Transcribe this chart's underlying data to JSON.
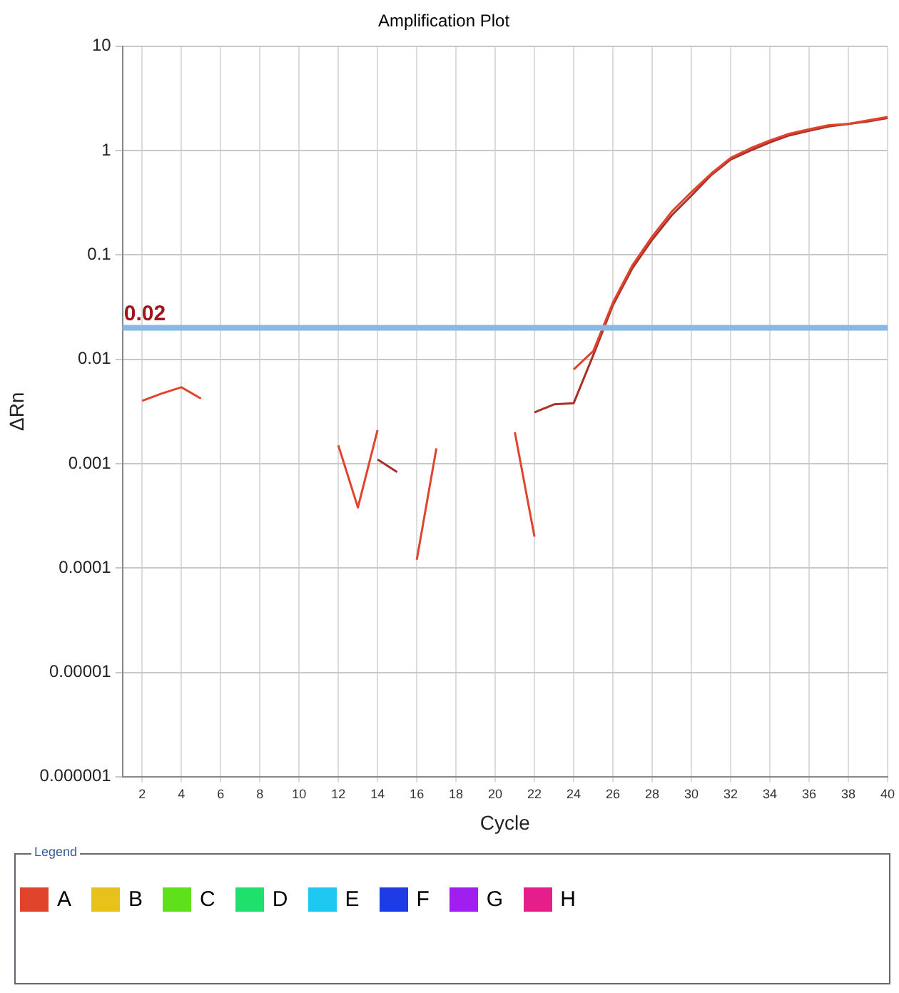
{
  "chart_data": {
    "type": "line",
    "title": "Amplification Plot",
    "xlabel": "Cycle",
    "ylabel": "ΔRn",
    "legend_title": "Legend",
    "x": [
      2,
      3,
      4,
      5,
      6,
      7,
      8,
      9,
      10,
      11,
      12,
      13,
      14,
      15,
      16,
      17,
      18,
      19,
      20,
      21,
      22,
      23,
      24,
      25,
      26,
      27,
      28,
      29,
      30,
      31,
      32,
      33,
      34,
      35,
      36,
      37,
      38,
      39,
      40
    ],
    "series": [
      {
        "name": "A",
        "color": "#e0442c",
        "values": [
          0.004,
          0.0047,
          0.0054,
          0.0042,
          null,
          null,
          null,
          null,
          null,
          null,
          0.0015,
          0.00038,
          0.0021,
          null,
          0.00012,
          0.0014,
          null,
          null,
          null,
          0.002,
          0.0002,
          null,
          0.008,
          0.012,
          0.035,
          0.08,
          0.15,
          0.26,
          0.4,
          0.6,
          0.85,
          1.05,
          1.25,
          1.45,
          1.6,
          1.75,
          1.8,
          1.95,
          2.1
        ]
      },
      {
        "color": "#a8322a",
        "values": [
          null,
          null,
          null,
          null,
          null,
          null,
          null,
          null,
          null,
          null,
          null,
          null,
          0.0011,
          0.00083,
          null,
          null,
          null,
          null,
          null,
          null,
          0.0031,
          0.0037,
          0.0038,
          0.011,
          0.033,
          0.075,
          0.14,
          0.24,
          0.37,
          0.58,
          0.82,
          1.0,
          1.2,
          1.4,
          1.55,
          1.7,
          1.8,
          1.9,
          2.05
        ]
      },
      {
        "name": "B",
        "color": "#e6c21a",
        "values": [
          null,
          null,
          null,
          null,
          null,
          null,
          null,
          null,
          null,
          null,
          null,
          null,
          null,
          null,
          null,
          null,
          null,
          null,
          null,
          null,
          null,
          null,
          null,
          null,
          null,
          null,
          null,
          null,
          null,
          null,
          null,
          null,
          null,
          null,
          null,
          null,
          null,
          null,
          null
        ]
      },
      {
        "name": "C",
        "color": "#5ee01a",
        "values": [
          null,
          null,
          null,
          null,
          null,
          null,
          null,
          null,
          null,
          null,
          null,
          null,
          null,
          null,
          null,
          null,
          null,
          null,
          null,
          null,
          null,
          null,
          null,
          null,
          null,
          null,
          null,
          null,
          null,
          null,
          null,
          null,
          null,
          null,
          null,
          null,
          null,
          null,
          null
        ]
      },
      {
        "name": "D",
        "color": "#1ee06a",
        "values": [
          null,
          null,
          null,
          null,
          null,
          null,
          null,
          null,
          null,
          null,
          null,
          null,
          null,
          null,
          null,
          null,
          null,
          null,
          null,
          null,
          null,
          null,
          null,
          null,
          null,
          null,
          null,
          null,
          null,
          null,
          null,
          null,
          null,
          null,
          null,
          null,
          null,
          null,
          null
        ]
      },
      {
        "name": "E",
        "color": "#1ec8f0",
        "values": [
          null,
          null,
          null,
          null,
          null,
          null,
          null,
          null,
          null,
          null,
          null,
          null,
          null,
          null,
          null,
          null,
          null,
          null,
          null,
          null,
          null,
          null,
          null,
          null,
          null,
          null,
          null,
          null,
          null,
          null,
          null,
          null,
          null,
          null,
          null,
          null,
          null,
          null,
          null
        ]
      },
      {
        "name": "F",
        "color": "#1e3ce6",
        "values": [
          null,
          null,
          null,
          null,
          null,
          null,
          null,
          null,
          null,
          null,
          null,
          null,
          null,
          null,
          null,
          null,
          null,
          null,
          null,
          null,
          null,
          null,
          null,
          null,
          null,
          null,
          null,
          null,
          null,
          null,
          null,
          null,
          null,
          null,
          null,
          null,
          null,
          null,
          null
        ]
      },
      {
        "name": "G",
        "color": "#a01ef0",
        "values": [
          null,
          null,
          null,
          null,
          null,
          null,
          null,
          null,
          null,
          null,
          null,
          null,
          null,
          null,
          null,
          null,
          null,
          null,
          null,
          null,
          null,
          null,
          null,
          null,
          null,
          null,
          null,
          null,
          null,
          null,
          null,
          null,
          null,
          null,
          null,
          null,
          null,
          null,
          null
        ]
      },
      {
        "name": "H",
        "color": "#e61e8c",
        "values": [
          null,
          null,
          null,
          null,
          null,
          null,
          null,
          null,
          null,
          null,
          null,
          null,
          null,
          null,
          null,
          null,
          null,
          null,
          null,
          null,
          null,
          null,
          null,
          null,
          null,
          null,
          null,
          null,
          null,
          null,
          null,
          null,
          null,
          null,
          null,
          null,
          null,
          null,
          null
        ]
      }
    ],
    "xlim": [
      1,
      40
    ],
    "xticks": [
      2,
      4,
      6,
      8,
      10,
      12,
      14,
      16,
      18,
      20,
      22,
      24,
      26,
      28,
      30,
      32,
      34,
      36,
      38,
      40
    ],
    "log": "y",
    "ylim": [
      1e-06,
      10
    ],
    "yticks": [
      {
        "value": 1e-06,
        "label": "0.000001"
      },
      {
        "value": 1e-05,
        "label": "0.00001"
      },
      0.0001,
      0.001,
      0.01,
      0.1,
      1,
      10
    ],
    "ref_lines": [
      {
        "axis": "y",
        "value": 0.02,
        "label": "0.02",
        "color": "#8ab8e6"
      }
    ],
    "grid": true,
    "legend": "bottom",
    "marker": "none",
    "line_style": "solid"
  }
}
